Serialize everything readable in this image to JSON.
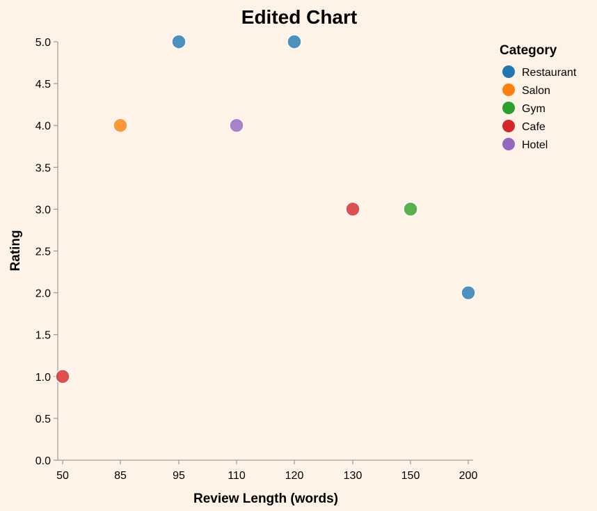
{
  "chart_data": {
    "type": "scatter",
    "title": "Edited Chart",
    "xlabel": "Review Length (words)",
    "ylabel": "Rating",
    "x_ticks": [
      "50",
      "85",
      "95",
      "110",
      "120",
      "130",
      "150",
      "200"
    ],
    "y_ticks": [
      "0.0",
      "0.5",
      "1.0",
      "1.5",
      "2.0",
      "2.5",
      "3.0",
      "3.5",
      "4.0",
      "4.5",
      "5.0"
    ],
    "ylim": [
      0,
      5
    ],
    "grid": false,
    "legend": {
      "title": "Category",
      "position": "right",
      "entries": [
        {
          "name": "Restaurant",
          "color": "#1f77b4"
        },
        {
          "name": "Salon",
          "color": "#ff7f0e"
        },
        {
          "name": "Gym",
          "color": "#2ca02c"
        },
        {
          "name": "Cafe",
          "color": "#d62728"
        },
        {
          "name": "Hotel",
          "color": "#9467bd"
        }
      ]
    },
    "points": [
      {
        "x": "95",
        "y": 5.0,
        "category": "Restaurant"
      },
      {
        "x": "120",
        "y": 5.0,
        "category": "Restaurant"
      },
      {
        "x": "85",
        "y": 4.0,
        "category": "Salon"
      },
      {
        "x": "110",
        "y": 4.0,
        "category": "Hotel"
      },
      {
        "x": "130",
        "y": 3.0,
        "category": "Cafe"
      },
      {
        "x": "150",
        "y": 3.0,
        "category": "Gym"
      },
      {
        "x": "200",
        "y": 2.0,
        "category": "Restaurant"
      },
      {
        "x": "50",
        "y": 1.0,
        "category": "Cafe"
      }
    ]
  }
}
